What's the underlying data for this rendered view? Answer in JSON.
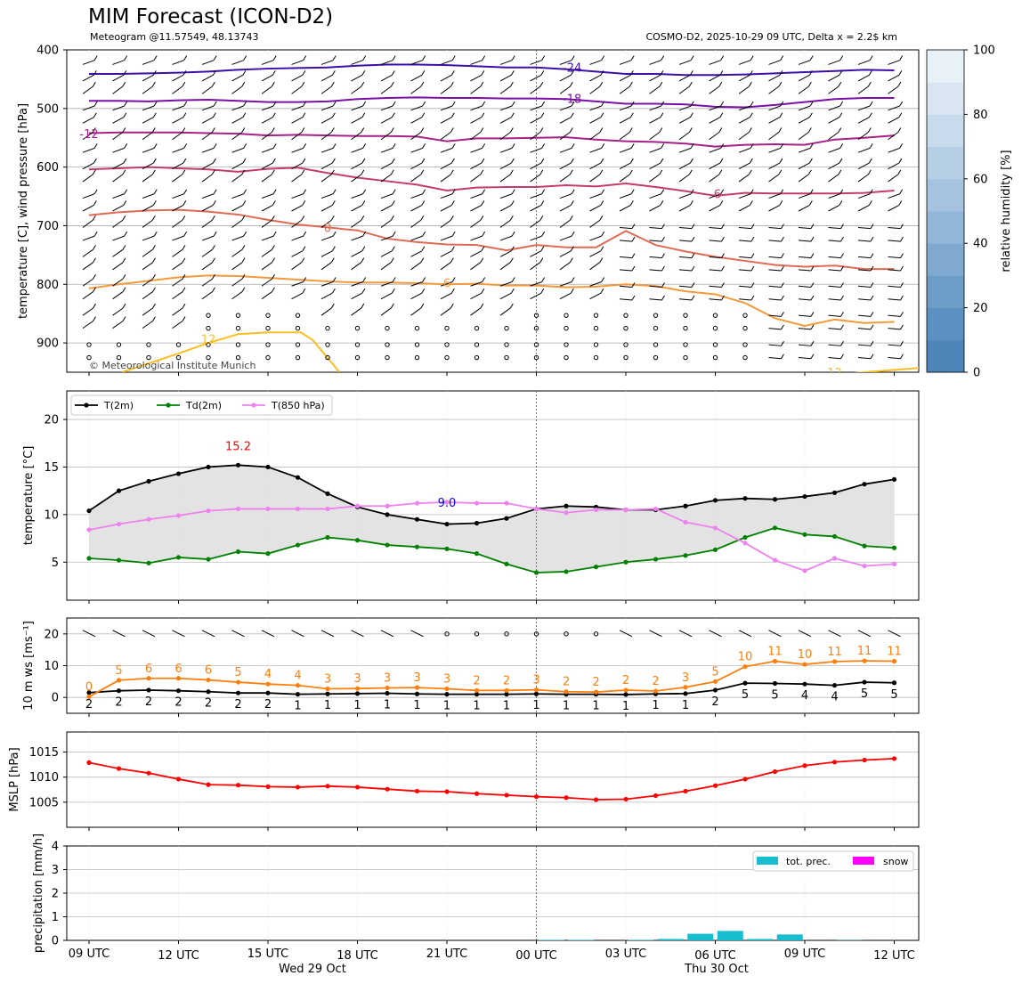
{
  "header": {
    "title": "MIM Forecast (ICON-D2)",
    "subtitle_left": "Meteogram @11.57549, 48.13743",
    "subtitle_right": "COSMO-D2, 2025-10-29 09 UTC, Delta x = 2.2$ km"
  },
  "colors": {
    "t2m": "#000000",
    "td2m": "#008000",
    "t850": "#ee82ee",
    "mslp": "#ff0000",
    "wind10": "#ff7f0e",
    "precip": "#17becf",
    "snow": "#ff00ff"
  },
  "chart_data": [
    {
      "type": "contour",
      "panel": "upper-air",
      "ylabel": "temperature [C], wind pressure [hPa]",
      "ylim": [
        950,
        400
      ],
      "yticks": [
        "400",
        "500",
        "600",
        "700",
        "800",
        "900"
      ],
      "copyright": "© Meteorological Institute Munich",
      "colorbar": {
        "label": "relative humidity [%]",
        "range": [
          0,
          100
        ],
        "ticks": [
          "0",
          "20",
          "40",
          "60",
          "80",
          "100"
        ]
      },
      "isotherm_labels": [
        "-24",
        "-18",
        "-12",
        "-6",
        "0",
        "6",
        "12",
        "12"
      ],
      "isotherms": [
        {
          "t": -24,
          "color": "#3d0ea8",
          "p": [
            441,
            441,
            440,
            439,
            437,
            434,
            432,
            431,
            430,
            427,
            425,
            425,
            426,
            428,
            430,
            430,
            433,
            437,
            441,
            441,
            443,
            443,
            442,
            440,
            438,
            436,
            434,
            435
          ]
        },
        {
          "t": -18,
          "color": "#7a10a8",
          "p": [
            487,
            487,
            488,
            486,
            485,
            487,
            489,
            489,
            488,
            484,
            482,
            481,
            482,
            482,
            483,
            483,
            484,
            488,
            492,
            492,
            493,
            497,
            498,
            494,
            489,
            484,
            482,
            482
          ]
        },
        {
          "t": -12,
          "color": "#a8208a",
          "p": [
            542,
            541,
            541,
            541,
            542,
            543,
            546,
            545,
            546,
            547,
            547,
            548,
            556,
            551,
            551,
            550,
            549,
            553,
            556,
            557,
            560,
            565,
            562,
            561,
            562,
            553,
            550,
            546
          ]
        },
        {
          "t": -6,
          "color": "#c43c6e",
          "p": [
            604,
            602,
            600,
            602,
            604,
            608,
            603,
            601,
            610,
            618,
            624,
            630,
            640,
            635,
            634,
            634,
            631,
            633,
            628,
            634,
            641,
            649,
            644,
            645,
            645,
            645,
            644,
            640
          ]
        },
        {
          "t": 0,
          "color": "#e06a55",
          "p": [
            682,
            677,
            674,
            673,
            676,
            681,
            690,
            698,
            703,
            708,
            722,
            728,
            732,
            733,
            742,
            733,
            737,
            737,
            709,
            733,
            744,
            753,
            760,
            767,
            770,
            768,
            774,
            774
          ]
        },
        {
          "t": 6,
          "color": "#f59a3a",
          "p": [
            807,
            800,
            794,
            788,
            785,
            786,
            789,
            792,
            795,
            797,
            797,
            798,
            800,
            799,
            802,
            802,
            805,
            804,
            800,
            803,
            812,
            817,
            832,
            858,
            871,
            860,
            866,
            864
          ]
        }
      ],
      "isotherm_12_left": {
        "x": [
          1.1,
          2,
          3,
          4,
          5,
          6,
          7.1,
          7.5,
          8.4
        ],
        "p": [
          950,
          935,
          918,
          900,
          885,
          882,
          882,
          895,
          950
        ]
      },
      "isotherm_12_right": {
        "x": [
          25.3,
          26,
          27,
          28,
          29.5,
          30
        ],
        "p": [
          953,
          950,
          946,
          942,
          940,
          938
        ]
      }
    },
    {
      "type": "line",
      "panel": "temperature",
      "ylabel": "temperature [$^\\circ$C]",
      "ylim": [
        1,
        23
      ],
      "yticks": [
        "5",
        "10",
        "15",
        "20"
      ],
      "x_hours": [
        0,
        1,
        2,
        3,
        4,
        5,
        6,
        7,
        8,
        9,
        10,
        11,
        12,
        13,
        14,
        15,
        16,
        17,
        18,
        19,
        20,
        21,
        22,
        23,
        24,
        25,
        26,
        27
      ],
      "series": [
        {
          "name": "T(2m)",
          "values": [
            10.4,
            12.5,
            13.5,
            14.3,
            15.0,
            15.2,
            15.0,
            13.9,
            12.2,
            10.8,
            10.0,
            9.5,
            9.0,
            9.1,
            9.6,
            10.6,
            10.9,
            10.8,
            10.5,
            10.5,
            10.9,
            11.5,
            11.7,
            11.6,
            11.9,
            12.3,
            13.2,
            13.7
          ]
        },
        {
          "name": "Td(2m)",
          "values": [
            5.4,
            5.2,
            4.9,
            5.5,
            5.3,
            6.1,
            5.9,
            6.8,
            7.6,
            7.3,
            6.8,
            6.6,
            6.4,
            5.9,
            4.8,
            3.9,
            4.0,
            4.5,
            5.0,
            5.3,
            5.7,
            6.3,
            7.6,
            8.6,
            7.9,
            7.7,
            6.7,
            6.5
          ]
        },
        {
          "name": "T(850 hPa)",
          "values": [
            8.4,
            9.0,
            9.5,
            9.9,
            10.4,
            10.6,
            10.6,
            10.6,
            10.6,
            10.9,
            10.9,
            11.2,
            11.3,
            11.2,
            11.2,
            10.6,
            10.2,
            10.5,
            10.5,
            10.6,
            9.2,
            8.6,
            7.0,
            5.2,
            4.1,
            5.4,
            4.6,
            4.8
          ]
        }
      ],
      "annotations": [
        {
          "text": "15.2",
          "color": "#ff0000"
        },
        {
          "text": "9.0",
          "color": "#0000ff"
        }
      ]
    },
    {
      "type": "line",
      "panel": "wind",
      "ylabel": "10 m ws [ms$^{-1}$]",
      "ylim": [
        -5,
        25
      ],
      "yticks": [
        "0",
        "10",
        "20"
      ],
      "series": [
        {
          "name": "10 m ws",
          "values": [
            1.5,
            2.1,
            2.3,
            2.1,
            1.8,
            1.4,
            1.4,
            1.0,
            1.1,
            1.2,
            1.3,
            1.1,
            1.0,
            1.0,
            1.0,
            1.1,
            1.0,
            1.0,
            0.9,
            1.1,
            1.2,
            2.3,
            4.5,
            4.4,
            4.2,
            3.8,
            4.8,
            4.6
          ]
        },
        {
          "name": "10 m gusts",
          "values": [
            0.2,
            5.4,
            6.0,
            6.0,
            5.5,
            4.8,
            4.2,
            3.8,
            2.7,
            2.8,
            3.0,
            3.1,
            2.7,
            2.2,
            2.2,
            2.4,
            1.8,
            1.7,
            2.3,
            2.0,
            3.2,
            5.0,
            9.7,
            11.4,
            10.4,
            11.3,
            11.5,
            11.4
          ]
        }
      ],
      "ws_labels": [
        "2",
        "2",
        "2",
        "2",
        "2",
        "2",
        "2",
        "1",
        "1",
        "1",
        "1",
        "1",
        "1",
        "1",
        "1",
        "1",
        "1",
        "1",
        "1",
        "1",
        "1",
        "2",
        "5",
        "5",
        "4",
        "4",
        "5",
        "5"
      ],
      "gust_labels": [
        "0",
        "5",
        "6",
        "6",
        "6",
        "5",
        "4",
        "4",
        "3",
        "3",
        "3",
        "3",
        "3",
        "2",
        "2",
        "3",
        "2",
        "2",
        "2",
        "2",
        "3",
        "5",
        "10",
        "11",
        "10",
        "11",
        "11",
        "11"
      ]
    },
    {
      "type": "line",
      "panel": "mslp",
      "ylabel": "MSLP [hPa]",
      "ylim": [
        1000,
        1019
      ],
      "yticks": [
        "1005",
        "1010",
        "1015"
      ],
      "series": [
        {
          "name": "MSLP",
          "values": [
            1012.9,
            1011.7,
            1010.8,
            1009.6,
            1008.5,
            1008.4,
            1008.1,
            1008.0,
            1008.2,
            1008.0,
            1007.6,
            1007.2,
            1007.1,
            1006.7,
            1006.4,
            1006.1,
            1005.9,
            1005.5,
            1005.6,
            1006.3,
            1007.2,
            1008.3,
            1009.6,
            1011.1,
            1012.3,
            1013.0,
            1013.4,
            1013.7
          ]
        }
      ]
    },
    {
      "type": "bar",
      "panel": "precipitation",
      "ylabel": "precipitation [mm/h]",
      "ylim": [
        0,
        4
      ],
      "yticks": [
        "0",
        "1",
        "2",
        "3",
        "4"
      ],
      "series": [
        {
          "name": "tot. prec.",
          "values": [
            0,
            0,
            0,
            0,
            0,
            0,
            0,
            0,
            0,
            0,
            0,
            0,
            0,
            0,
            0,
            0.02,
            0.02,
            0,
            0.02,
            0.06,
            0.28,
            0.4,
            0.06,
            0.25,
            0,
            0.01,
            0,
            0
          ]
        },
        {
          "name": "snow",
          "values": [
            0,
            0,
            0,
            0,
            0,
            0,
            0,
            0,
            0,
            0,
            0,
            0,
            0,
            0,
            0,
            0,
            0,
            0,
            0,
            0,
            0,
            0,
            0,
            0,
            0,
            0,
            0,
            0
          ]
        }
      ]
    }
  ],
  "xaxis": {
    "ticks": [
      "09 UTC",
      "12 UTC",
      "15 UTC",
      "18 UTC",
      "21 UTC",
      "00 UTC",
      "03 UTC",
      "06 UTC",
      "09 UTC",
      "12 UTC"
    ],
    "day_labels": [
      "Wed 29 Oct",
      "Thu 30 Oct"
    ]
  }
}
